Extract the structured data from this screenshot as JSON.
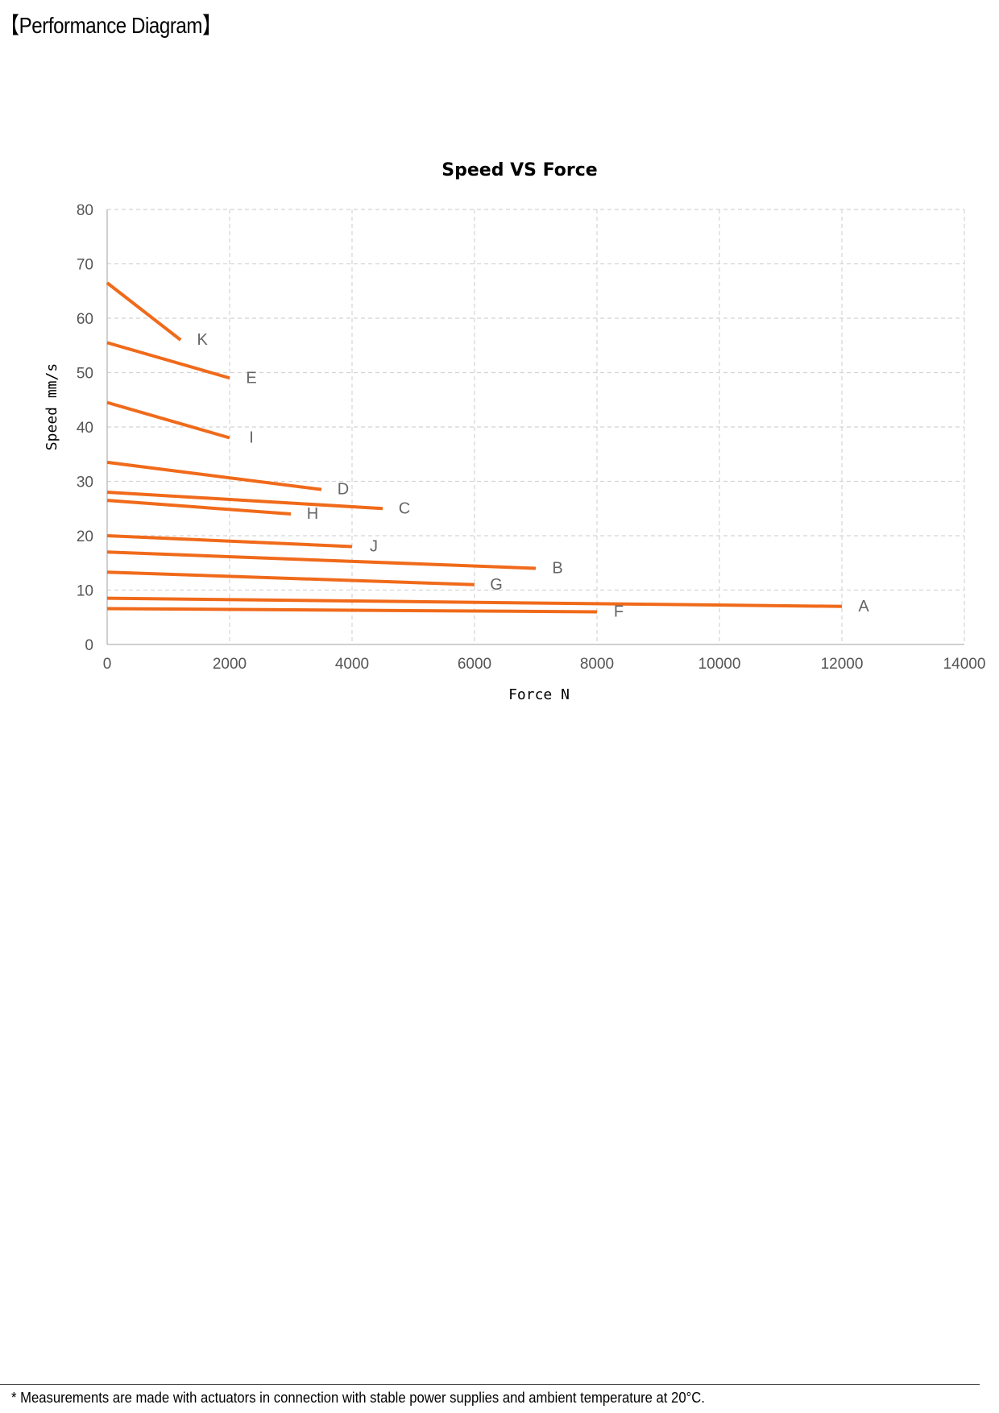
{
  "page": {
    "title": "【Performance Diagram】",
    "footnote": "* Measurements are made with actuators in connection with stable power supplies and ambient temperature at 20°C."
  },
  "chart_data": {
    "type": "line",
    "title": "Speed VS Force",
    "xlabel": "Force N",
    "ylabel": "Speed mm/s",
    "xlim": [
      0,
      14000
    ],
    "ylim": [
      0,
      80
    ],
    "xticks": [
      0,
      2000,
      4000,
      6000,
      8000,
      10000,
      12000,
      14000
    ],
    "yticks": [
      0,
      10,
      20,
      30,
      40,
      50,
      60,
      70,
      80
    ],
    "grid": true,
    "line_color": "#f06a1a",
    "series": [
      {
        "name": "K",
        "x": [
          0,
          1200
        ],
        "y": [
          66.5,
          56
        ]
      },
      {
        "name": "E",
        "x": [
          0,
          2000
        ],
        "y": [
          55.5,
          49
        ]
      },
      {
        "name": "I",
        "x": [
          0,
          2000
        ],
        "y": [
          44.5,
          38
        ]
      },
      {
        "name": "D",
        "x": [
          0,
          3500
        ],
        "y": [
          33.5,
          28.5
        ]
      },
      {
        "name": "C",
        "x": [
          0,
          4500
        ],
        "y": [
          28,
          25
        ]
      },
      {
        "name": "H",
        "x": [
          0,
          3000
        ],
        "y": [
          26.5,
          24
        ]
      },
      {
        "name": "J",
        "x": [
          0,
          4000
        ],
        "y": [
          20,
          18
        ]
      },
      {
        "name": "B",
        "x": [
          0,
          7000
        ],
        "y": [
          17,
          14
        ]
      },
      {
        "name": "G",
        "x": [
          0,
          6000
        ],
        "y": [
          13.3,
          11
        ]
      },
      {
        "name": "A",
        "x": [
          0,
          12000
        ],
        "y": [
          8.5,
          7
        ]
      },
      {
        "name": "F",
        "x": [
          0,
          8000
        ],
        "y": [
          6.6,
          6
        ]
      }
    ]
  }
}
